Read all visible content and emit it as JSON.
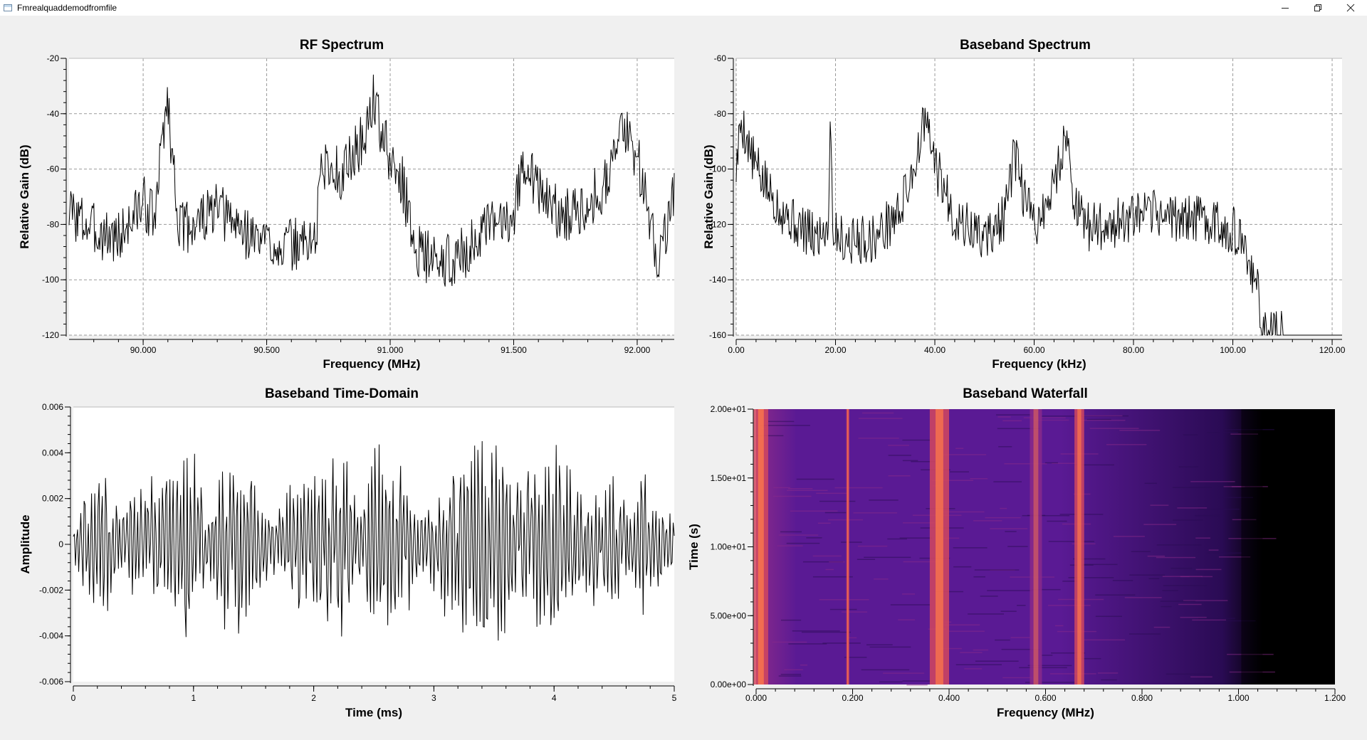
{
  "window": {
    "title": "Fmrealquaddemodfromfile"
  },
  "controls": {
    "minimize_icon": "minimize-icon",
    "restore_icon": "restore-icon",
    "close_icon": "close-icon"
  },
  "chart_data": [
    {
      "id": "rf",
      "type": "line",
      "title": "RF Spectrum",
      "xlabel": "Frequency (MHz)",
      "ylabel": "Relative Gain (dB)",
      "xlim": [
        89.7,
        92.15
      ],
      "ylim": [
        -120,
        -20
      ],
      "xticks": [
        90.0,
        90.5,
        91.0,
        91.5,
        92.0
      ],
      "xtick_labels": [
        "90.000",
        "90.500",
        "91.000",
        "91.500",
        "92.000"
      ],
      "yticks": [
        -120,
        -100,
        -80,
        -60,
        -40,
        -20
      ],
      "ytick_labels": [
        "-120",
        "-100",
        "-80",
        "-60",
        "-40",
        "-20"
      ],
      "grid": true,
      "line_color": "#000000",
      "series": [
        {
          "x": [
            89.7,
            89.8,
            89.9,
            90.0,
            90.05,
            90.08,
            90.1,
            90.12,
            90.15,
            90.3,
            90.45,
            90.6,
            90.7,
            90.72,
            90.8,
            90.9,
            90.93,
            91.0,
            91.05,
            91.1,
            91.2,
            91.3,
            91.4,
            91.5,
            91.55,
            91.6,
            91.7,
            91.85,
            91.95,
            92.0,
            92.08,
            92.15
          ],
          "y": [
            -75,
            -82,
            -85,
            -72,
            -78,
            -45,
            -35,
            -58,
            -82,
            -75,
            -85,
            -88,
            -85,
            -58,
            -62,
            -48,
            -34,
            -58,
            -65,
            -88,
            -95,
            -90,
            -82,
            -75,
            -55,
            -68,
            -78,
            -68,
            -45,
            -55,
            -92,
            -70
          ]
        }
      ]
    },
    {
      "id": "bb",
      "type": "line",
      "title": "Baseband Spectrum",
      "xlabel": "Frequency (kHz)",
      "ylabel": "Relative Gain (dB)",
      "xlim": [
        0,
        122
      ],
      "ylim": [
        -160,
        -60
      ],
      "xticks": [
        0,
        20,
        40,
        60,
        80,
        100,
        120
      ],
      "xtick_labels": [
        "0.00",
        "20.00",
        "40.00",
        "60.00",
        "80.00",
        "100.00",
        "120.00"
      ],
      "yticks": [
        -160,
        -140,
        -120,
        -100,
        -80,
        -60
      ],
      "ytick_labels": [
        "-160",
        "-140",
        "-120",
        "-100",
        "-80",
        "-60"
      ],
      "grid": true,
      "line_color": "#000000",
      "series": [
        {
          "x": [
            0,
            1,
            3,
            5,
            8,
            12,
            16,
            18.5,
            19,
            19.5,
            22,
            28,
            33,
            36,
            38,
            40,
            44,
            50,
            54,
            56,
            58,
            60,
            63,
            66.5,
            68,
            70,
            75,
            80,
            85,
            90,
            95,
            100,
            103,
            105,
            106,
            110,
            115,
            120
          ],
          "y": [
            -100,
            -82,
            -95,
            -103,
            -112,
            -120,
            -125,
            -120,
            -80,
            -122,
            -126,
            -125,
            -115,
            -98,
            -82,
            -98,
            -118,
            -125,
            -118,
            -95,
            -110,
            -120,
            -112,
            -87,
            -110,
            -121,
            -120,
            -118,
            -116,
            -118,
            -118,
            -122,
            -132,
            -145,
            -158,
            -160,
            -160,
            -160
          ]
        }
      ]
    },
    {
      "id": "td",
      "type": "line",
      "title": "Baseband Time-Domain",
      "xlabel": "Time (ms)",
      "ylabel": "Amplitude",
      "xlim": [
        0,
        5
      ],
      "ylim": [
        -0.006,
        0.006
      ],
      "xticks": [
        0,
        1,
        2,
        3,
        4,
        5
      ],
      "xtick_labels": [
        "0",
        "1",
        "2",
        "3",
        "4",
        "5"
      ],
      "yticks": [
        -0.006,
        -0.004,
        -0.002,
        0,
        0.002,
        0.004,
        0.006
      ],
      "ytick_labels": [
        "-0.006",
        "-0.004",
        "-0.002",
        "0",
        "0.002",
        "0.004",
        "0.006"
      ],
      "grid": false,
      "line_color": "#000000",
      "series": [
        {
          "x": [
            0,
            0.25,
            0.5,
            0.75,
            1.0,
            1.25,
            1.5,
            1.75,
            2.0,
            2.25,
            2.5,
            2.75,
            3.0,
            3.25,
            3.5,
            3.75,
            4.0,
            4.25,
            4.5,
            4.75,
            5.0
          ],
          "y": [
            0.0,
            -0.002,
            0.001,
            0.002,
            0.003,
            -0.003,
            -0.002,
            0.001,
            0.002,
            0.003,
            -0.003,
            -0.002,
            0.001,
            0.003,
            0.003,
            0.002,
            0.003,
            0.001,
            0.002,
            -0.002,
            0.0
          ]
        }
      ]
    },
    {
      "id": "wf",
      "type": "heatmap",
      "title": "Baseband Waterfall",
      "xlabel": "Frequency (MHz)",
      "ylabel": "Time (s)",
      "xlim": [
        0,
        1.2
      ],
      "ylim": [
        0,
        20
      ],
      "xticks": [
        0,
        0.2,
        0.4,
        0.6,
        0.8,
        1.0,
        1.2
      ],
      "xtick_labels": [
        "0.000",
        "0.200",
        "0.400",
        "0.600",
        "0.800",
        "1.000",
        "1.200"
      ],
      "yticks": [
        0,
        5,
        10,
        15,
        20
      ],
      "ytick_labels": [
        "0.00e+00",
        "5.00e+00",
        "1.00e+01",
        "1.50e+01",
        "2.00e+01"
      ],
      "grid": false,
      "colormap": [
        "#000000",
        "#2a0b54",
        "#5a1a94",
        "#8a2a8a",
        "#d2485f",
        "#ff7a4a"
      ],
      "bands": [
        {
          "center": 0.01,
          "width": 0.03,
          "intensity": 0.95
        },
        {
          "center": 0.19,
          "width": 0.006,
          "intensity": 0.9
        },
        {
          "center": 0.38,
          "width": 0.04,
          "intensity": 0.9
        },
        {
          "center": 0.58,
          "width": 0.025,
          "intensity": 0.6
        },
        {
          "center": 0.67,
          "width": 0.02,
          "intensity": 0.85
        }
      ],
      "cutoff": 1.05
    }
  ]
}
